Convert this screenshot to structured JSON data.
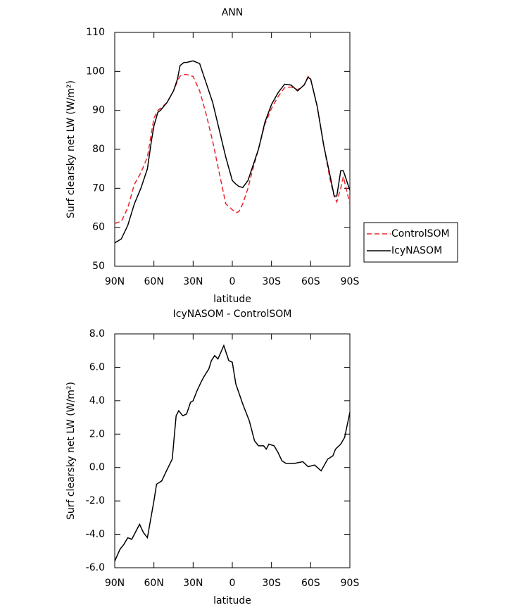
{
  "chart_data": [
    {
      "type": "line",
      "title": "ANN",
      "x_label": "latitude",
      "y_label": "Surf clearsky net LW (W/m²)",
      "x": [
        90,
        85,
        80,
        75,
        70,
        65,
        62,
        60,
        57,
        55,
        50,
        45,
        42,
        40,
        37,
        35,
        30,
        25,
        20,
        15,
        10,
        5,
        0,
        -3,
        -5,
        -8,
        -12,
        -15,
        -20,
        -25,
        -30,
        -35,
        -40,
        -45,
        -50,
        -55,
        -58,
        -60,
        -65,
        -70,
        -75,
        -78,
        -80,
        -83,
        -85,
        -90
      ],
      "series": [
        {
          "name": "ControlSOM",
          "color": "#e8262c",
          "line_style": "dashed",
          "values": [
            61,
            61.5,
            65,
            71,
            74,
            78,
            84,
            88,
            90,
            90.5,
            92,
            95,
            97.5,
            98.8,
            99.2,
            99.2,
            98.7,
            95,
            89,
            82,
            74,
            66,
            64.5,
            63.8,
            64,
            66,
            70,
            74,
            80,
            86.5,
            90.5,
            93.5,
            95.8,
            96,
            95.3,
            96.5,
            98.7,
            98,
            91,
            81,
            72,
            68,
            66.5,
            70,
            73,
            66
          ]
        },
        {
          "name": "IcyNASOM",
          "color": "#000000",
          "line_style": "solid",
          "values": [
            56,
            57,
            60.5,
            66,
            70,
            75,
            82,
            86,
            89.5,
            90,
            92,
            95,
            98,
            101.5,
            102.3,
            102.3,
            102.7,
            102,
            97,
            92,
            85,
            78,
            72,
            71,
            70.5,
            70.2,
            72,
            75,
            80,
            87,
            91.5,
            94.5,
            96.7,
            96.5,
            95,
            96.5,
            98.5,
            98,
            91,
            81,
            73,
            68,
            68,
            74.5,
            74.5,
            69.5
          ]
        }
      ],
      "xlim": [
        90,
        -90
      ],
      "xticks": [
        {
          "value": 90,
          "label": "90N"
        },
        {
          "value": 60,
          "label": "60N"
        },
        {
          "value": 30,
          "label": "30N"
        },
        0,
        {
          "value": -30,
          "label": "30S"
        },
        {
          "value": -60,
          "label": "60S"
        },
        {
          "value": -90,
          "label": "90S"
        }
      ],
      "ylim": [
        50,
        110
      ],
      "yticks": [
        50,
        60,
        70,
        80,
        90,
        100,
        110
      ],
      "legend": "right"
    },
    {
      "type": "line",
      "title": "IcyNASOM - ControlSOM",
      "x_label": "latitude",
      "y_label": "Surf clearsky net LW (W/m²)",
      "x": [
        90,
        86,
        83,
        80,
        77,
        71,
        68,
        65,
        60,
        58,
        54,
        51,
        46,
        43,
        41,
        38,
        35,
        32,
        30,
        27,
        24,
        22,
        18,
        16,
        13.5,
        11,
        6.5,
        2.7,
        0,
        -2.7,
        -8,
        -13,
        -17,
        -20,
        -24,
        -26,
        -28,
        -32,
        -35,
        -38,
        -41,
        -48,
        -54,
        -58,
        -63,
        -68,
        -73,
        -77,
        -79,
        -83,
        -86,
        -90
      ],
      "series": [
        {
          "name": "IcyNASOM - ControlSOM",
          "color": "#000000",
          "line_style": "solid",
          "values": [
            -5.6,
            -4.9,
            -4.6,
            -4.2,
            -4.3,
            -3.4,
            -3.9,
            -4.2,
            -2.0,
            -1.0,
            -0.8,
            -0.3,
            0.5,
            3.1,
            3.4,
            3.1,
            3.2,
            3.9,
            4.0,
            4.6,
            5.1,
            5.4,
            5.9,
            6.4,
            6.7,
            6.5,
            7.3,
            6.4,
            6.3,
            5.0,
            3.8,
            2.8,
            1.6,
            1.3,
            1.3,
            1.1,
            1.4,
            1.3,
            0.9,
            0.4,
            0.25,
            0.25,
            0.35,
            0.05,
            0.15,
            -0.2,
            0.5,
            0.7,
            1.1,
            1.4,
            1.8,
            3.3
          ]
        }
      ],
      "xlim": [
        90,
        -90
      ],
      "xticks": [
        {
          "value": 90,
          "label": "90N"
        },
        {
          "value": 60,
          "label": "60N"
        },
        {
          "value": 30,
          "label": "30N"
        },
        0,
        {
          "value": -30,
          "label": "30S"
        },
        {
          "value": -60,
          "label": "60S"
        },
        {
          "value": -90,
          "label": "90S"
        }
      ],
      "ylim": [
        -6,
        8
      ],
      "yticks": [
        {
          "value": -6,
          "label": "-6.0"
        },
        {
          "value": -4,
          "label": "-4.0"
        },
        {
          "value": -2,
          "label": "-2.0"
        },
        {
          "value": 0,
          "label": "0.0"
        },
        {
          "value": 2,
          "label": "2.0"
        },
        {
          "value": 4,
          "label": "4.0"
        },
        {
          "value": 6,
          "label": "6.0"
        },
        {
          "value": 8,
          "label": "8.0"
        }
      ]
    }
  ]
}
